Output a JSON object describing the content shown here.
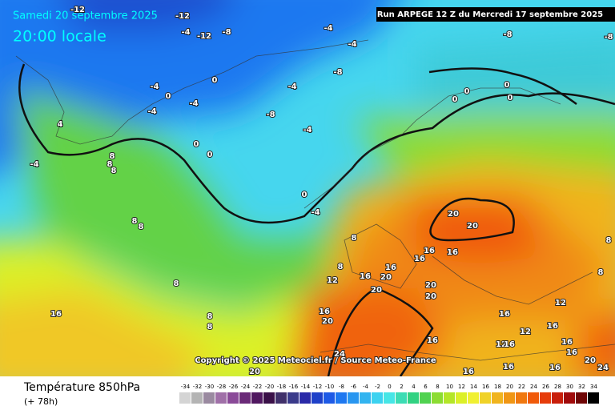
{
  "header": {
    "valid_date": "Samedi 20 septembre 2025",
    "valid_time": "20:00 locale",
    "run": "Run ARPEGE 12 Z du Mercredi 17 septembre 2025"
  },
  "copyright": "Copyright © 2025 Meteociel.fr / Source Meteo-France",
  "footer": {
    "title": "Température 850hPa",
    "lead": "(+ 78h)"
  },
  "colorbar": {
    "values": [
      -34,
      -32,
      -30,
      -28,
      -26,
      -24,
      -22,
      -20,
      -18,
      -16,
      -14,
      -12,
      -10,
      -8,
      -6,
      -4,
      -2,
      0,
      2,
      4,
      6,
      8,
      10,
      12,
      14,
      16,
      18,
      20,
      22,
      24,
      26,
      28,
      30,
      32,
      34
    ],
    "colors": [
      "#d4d4d4",
      "#b4b4b4",
      "#9a8aa0",
      "#a070a8",
      "#8a4a98",
      "#6a2a78",
      "#501860",
      "#3a1048",
      "#40306a",
      "#3a3a8a",
      "#2a2aa8",
      "#1e40c8",
      "#1e5ae6",
      "#1e78f0",
      "#2896f0",
      "#32b4f0",
      "#3cd2f0",
      "#46e6e6",
      "#3cdcb4",
      "#32d282",
      "#50d250",
      "#8cdc32",
      "#b4e628",
      "#dcf028",
      "#f0f032",
      "#f0d228",
      "#f0b41e",
      "#f09614",
      "#f0780f",
      "#f05a0a",
      "#e63c0a",
      "#c81e0a",
      "#a00a0a",
      "#6e0505",
      "#000000"
    ]
  },
  "map_labels": [
    -12,
    -12,
    -4,
    -12,
    -8,
    -4,
    -4,
    -8,
    -8,
    -8,
    -4,
    0,
    -4,
    0,
    -4,
    -4,
    -8,
    -4,
    4,
    -4,
    0,
    0,
    8,
    8,
    8,
    0,
    -4,
    8,
    8,
    8,
    8,
    12,
    16,
    16,
    20,
    16,
    16,
    16,
    20,
    20,
    20,
    20,
    20,
    16,
    20,
    16,
    8,
    8,
    8,
    16,
    12,
    16,
    12,
    16,
    12,
    16,
    16,
    16,
    20,
    24,
    16,
    16,
    16,
    24,
    20,
    8,
    8,
    0,
    0,
    0,
    0
  ]
}
